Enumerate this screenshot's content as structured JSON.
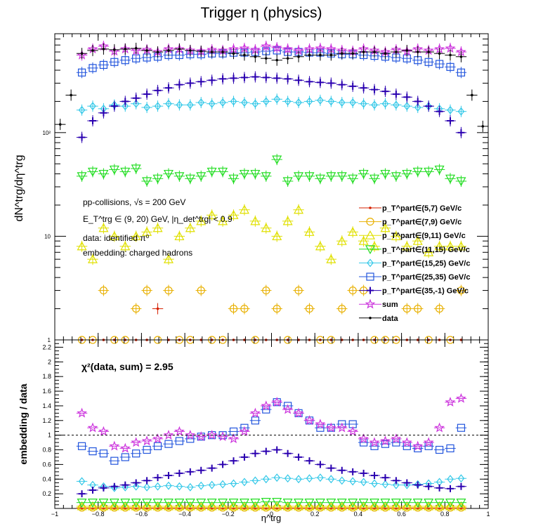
{
  "chart_data": {
    "type": "scatter",
    "title": "Trigger η (physics)",
    "x": [
      -0.875,
      -0.825,
      -0.775,
      -0.725,
      -0.675,
      -0.625,
      -0.575,
      -0.525,
      -0.475,
      -0.425,
      -0.375,
      -0.325,
      -0.275,
      -0.225,
      -0.175,
      -0.125,
      -0.075,
      -0.025,
      0.025,
      0.075,
      0.125,
      0.175,
      0.225,
      0.275,
      0.325,
      0.375,
      0.425,
      0.475,
      0.525,
      0.575,
      0.625,
      0.675,
      0.725,
      0.775,
      0.825,
      0.875
    ],
    "top_panel": {
      "ylabel": "dN^trg/dη^trg",
      "yscale": "log",
      "ylim": [
        1,
        900
      ],
      "y_tick_labels": [
        "1",
        "10",
        "10²"
      ],
      "annotations": [
        "pp-collisions, √s = 200 GeV",
        "E_T^trg ∈ (9, 20) GeV, |η_det^trg| < 0.9",
        "data: identified π⁰",
        "embedding: charged hadrons"
      ],
      "legend_position": "bottom-right",
      "series": [
        {
          "name": "p_T^part∈(5,7) GeV/c",
          "color": "#d62000",
          "marker": "dot",
          "values": [
            1,
            1,
            1,
            1,
            1,
            1,
            1,
            2,
            1,
            1,
            1,
            1,
            1,
            1,
            1,
            1,
            1,
            1,
            1,
            1,
            1,
            1,
            1,
            1,
            1,
            1,
            1,
            1,
            1,
            1,
            1,
            1,
            1,
            1,
            1,
            1
          ]
        },
        {
          "name": "p_T^part∈(7,9) GeV/c",
          "color": "#e8b000",
          "marker": "circle",
          "values": [
            1,
            1,
            3,
            1,
            1,
            2,
            3,
            1,
            3,
            1,
            1,
            3,
            1,
            1,
            2,
            2,
            1,
            3,
            2,
            1,
            3,
            2,
            1,
            1,
            2,
            3,
            3,
            1,
            1,
            1,
            2,
            2,
            1,
            2,
            1,
            3
          ]
        },
        {
          "name": "p_T^part∈(9,11) GeV/c",
          "color": "#e0e000",
          "marker": "triangle-up",
          "values": [
            8,
            6,
            12,
            10,
            8,
            10,
            11,
            12,
            6,
            10,
            12,
            14,
            16,
            14,
            16,
            18,
            14,
            12,
            10,
            14,
            18,
            11,
            8,
            6,
            9,
            11,
            9,
            8,
            12,
            10,
            8,
            9,
            7,
            8,
            8,
            8
          ]
        },
        {
          "name": "p_T^part∈(11,15) GeV/c",
          "color": "#22dd22",
          "marker": "triangle-down",
          "values": [
            38,
            42,
            40,
            44,
            42,
            45,
            34,
            36,
            40,
            38,
            36,
            38,
            42,
            42,
            36,
            40,
            40,
            38,
            55,
            34,
            38,
            38,
            36,
            38,
            38,
            36,
            40,
            36,
            40,
            38,
            40,
            42,
            42,
            44,
            36,
            34
          ]
        },
        {
          "name": "p_T^part∈(15,25) GeV/c",
          "color": "#33c8e8",
          "marker": "diamond",
          "values": [
            165,
            180,
            170,
            185,
            180,
            190,
            175,
            180,
            190,
            185,
            185,
            195,
            190,
            195,
            200,
            195,
            190,
            200,
            210,
            200,
            195,
            200,
            205,
            200,
            195,
            195,
            190,
            185,
            190,
            185,
            180,
            175,
            180,
            170,
            165,
            160
          ]
        },
        {
          "name": "p_T^part∈(25,35) GeV/c",
          "color": "#2255dd",
          "marker": "square",
          "values": [
            380,
            420,
            450,
            480,
            500,
            520,
            530,
            540,
            560,
            560,
            570,
            570,
            580,
            580,
            590,
            590,
            600,
            610,
            620,
            600,
            600,
            590,
            590,
            580,
            570,
            570,
            560,
            550,
            540,
            530,
            520,
            500,
            480,
            460,
            430,
            380
          ]
        },
        {
          "name": "p_T^part∈(35,-1) GeV/c",
          "color": "#2a00b0",
          "marker": "cross",
          "values": [
            90,
            130,
            155,
            180,
            200,
            215,
            235,
            255,
            270,
            290,
            300,
            310,
            320,
            330,
            335,
            340,
            345,
            340,
            335,
            330,
            320,
            310,
            305,
            300,
            290,
            280,
            270,
            260,
            250,
            235,
            220,
            200,
            180,
            160,
            130,
            100
          ]
        },
        {
          "name": "sum",
          "color": "#cc33dd",
          "marker": "star",
          "values": [
            560,
            640,
            680,
            610,
            640,
            620,
            630,
            600,
            640,
            640,
            620,
            610,
            630,
            620,
            640,
            650,
            630,
            680,
            660,
            640,
            620,
            640,
            650,
            640,
            620,
            610,
            640,
            620,
            600,
            630,
            610,
            640,
            620,
            640,
            650,
            600
          ]
        },
        {
          "name": "data",
          "color": "#000000",
          "marker": "dot",
          "values": [
            580,
            620,
            640,
            630,
            640,
            650,
            620,
            600,
            620,
            640,
            620,
            610,
            600,
            600,
            580,
            560,
            540,
            520,
            500,
            520,
            540,
            560,
            560,
            560,
            580,
            580,
            600,
            600,
            580,
            600,
            620,
            600,
            600,
            580,
            560,
            540
          ]
        }
      ],
      "data_extra": {
        "x": [
          -0.975,
          -0.925,
          0.925,
          0.975
        ],
        "values": [
          120,
          230,
          230,
          115
        ]
      }
    },
    "bottom_panel": {
      "ylabel": "embedding / data",
      "ylim": [
        0,
        2.3
      ],
      "y_ticks": [
        0.2,
        0.4,
        0.6,
        0.8,
        1,
        1.2,
        1.4,
        1.6,
        1.8,
        2,
        2.2
      ],
      "y_tick_labels": [
        "0.2",
        "0.4",
        "0.6",
        "0.8",
        "1",
        "1.2",
        "1.4",
        "1.6",
        "1.8",
        "2",
        "2.2"
      ],
      "reference_line": 1,
      "annotation": "χ²(data, sum) = 2.95",
      "series": [
        {
          "name": "p_T^part∈(5,7) GeV/c",
          "color": "#d62000",
          "marker": "dot",
          "values": [
            0,
            0,
            0,
            0,
            0,
            0,
            0,
            0,
            0,
            0,
            0,
            0,
            0,
            0,
            0,
            0,
            0,
            0,
            0,
            0,
            0,
            0,
            0,
            0,
            0,
            0,
            0,
            0,
            0,
            0,
            0,
            0,
            0,
            0,
            0,
            0
          ]
        },
        {
          "name": "p_T^part∈(7,9) GeV/c",
          "color": "#e8b000",
          "marker": "circle",
          "values": [
            0.01,
            0.01,
            0.01,
            0.01,
            0.01,
            0.01,
            0.01,
            0.01,
            0.01,
            0.01,
            0.01,
            0.01,
            0.01,
            0.01,
            0.01,
            0.01,
            0.01,
            0.01,
            0.01,
            0.01,
            0.01,
            0.01,
            0.01,
            0.01,
            0.01,
            0.01,
            0.01,
            0.01,
            0.01,
            0.01,
            0.01,
            0.01,
            0.01,
            0.01,
            0.01,
            0.01
          ]
        },
        {
          "name": "p_T^part∈(9,11) GeV/c",
          "color": "#e0e000",
          "marker": "triangle-up",
          "values": [
            0.03,
            0.03,
            0.03,
            0.03,
            0.03,
            0.03,
            0.03,
            0.03,
            0.03,
            0.03,
            0.03,
            0.03,
            0.03,
            0.03,
            0.03,
            0.03,
            0.03,
            0.03,
            0.03,
            0.03,
            0.03,
            0.03,
            0.03,
            0.03,
            0.03,
            0.03,
            0.03,
            0.03,
            0.03,
            0.03,
            0.03,
            0.03,
            0.03,
            0.03,
            0.03,
            0.03
          ]
        },
        {
          "name": "p_T^part∈(11,15) GeV/c",
          "color": "#22dd22",
          "marker": "triangle-down",
          "values": [
            0.08,
            0.08,
            0.08,
            0.08,
            0.08,
            0.08,
            0.08,
            0.08,
            0.08,
            0.08,
            0.08,
            0.08,
            0.08,
            0.08,
            0.08,
            0.08,
            0.08,
            0.09,
            0.09,
            0.08,
            0.08,
            0.08,
            0.08,
            0.08,
            0.08,
            0.08,
            0.08,
            0.08,
            0.08,
            0.08,
            0.08,
            0.08,
            0.08,
            0.08,
            0.08,
            0.08
          ]
        },
        {
          "name": "p_T^part∈(15,25) GeV/c",
          "color": "#33c8e8",
          "marker": "diamond",
          "values": [
            0.37,
            0.32,
            0.3,
            0.28,
            0.29,
            0.3,
            0.29,
            0.3,
            0.31,
            0.3,
            0.29,
            0.31,
            0.32,
            0.33,
            0.34,
            0.36,
            0.38,
            0.4,
            0.42,
            0.41,
            0.4,
            0.41,
            0.42,
            0.4,
            0.38,
            0.37,
            0.36,
            0.34,
            0.33,
            0.32,
            0.32,
            0.33,
            0.34,
            0.36,
            0.4,
            0.41
          ]
        },
        {
          "name": "p_T^part∈(25,35) GeV/c",
          "color": "#2255dd",
          "marker": "square",
          "values": [
            0.85,
            0.78,
            0.75,
            0.65,
            0.7,
            0.75,
            0.8,
            0.85,
            0.88,
            0.92,
            0.95,
            0.98,
            1.0,
            1.0,
            1.05,
            1.1,
            1.2,
            1.35,
            1.45,
            1.4,
            1.3,
            1.2,
            1.1,
            1.1,
            1.15,
            1.15,
            0.9,
            0.85,
            0.88,
            0.9,
            0.85,
            0.82,
            0.85,
            0.8,
            0.82,
            1.1
          ]
        },
        {
          "name": "p_T^part∈(35,-1) GeV/c",
          "color": "#2a00b0",
          "marker": "cross",
          "values": [
            0.2,
            0.25,
            0.28,
            0.3,
            0.32,
            0.35,
            0.38,
            0.42,
            0.45,
            0.48,
            0.5,
            0.52,
            0.55,
            0.6,
            0.65,
            0.7,
            0.75,
            0.78,
            0.8,
            0.75,
            0.7,
            0.65,
            0.6,
            0.55,
            0.52,
            0.5,
            0.48,
            0.45,
            0.42,
            0.38,
            0.35,
            0.32,
            0.3,
            0.28,
            0.27,
            0.3
          ]
        },
        {
          "name": "sum",
          "color": "#cc33dd",
          "marker": "star",
          "values": [
            1.3,
            1.1,
            1.05,
            0.85,
            0.82,
            0.9,
            0.92,
            0.95,
            1.0,
            1.05,
            1.0,
            0.98,
            1.0,
            0.98,
            0.95,
            1.05,
            1.3,
            1.4,
            1.45,
            1.35,
            1.3,
            1.2,
            1.15,
            1.1,
            1.1,
            1.05,
            0.95,
            0.9,
            0.92,
            0.95,
            0.9,
            0.85,
            0.9,
            1.1,
            1.45,
            1.5
          ]
        }
      ]
    },
    "x_axis": {
      "label": "η^trg",
      "xlim": [
        -1,
        1
      ],
      "ticks": [
        -1,
        -0.8,
        -0.6,
        -0.4,
        -0.2,
        0,
        0.2,
        0.4,
        0.6,
        0.8,
        1
      ],
      "tick_labels": [
        "−1",
        "−0.8",
        "−0.6",
        "−0.4",
        "−0.2",
        "0",
        "0.2",
        "0.4",
        "0.6",
        "0.8",
        "1"
      ]
    }
  }
}
